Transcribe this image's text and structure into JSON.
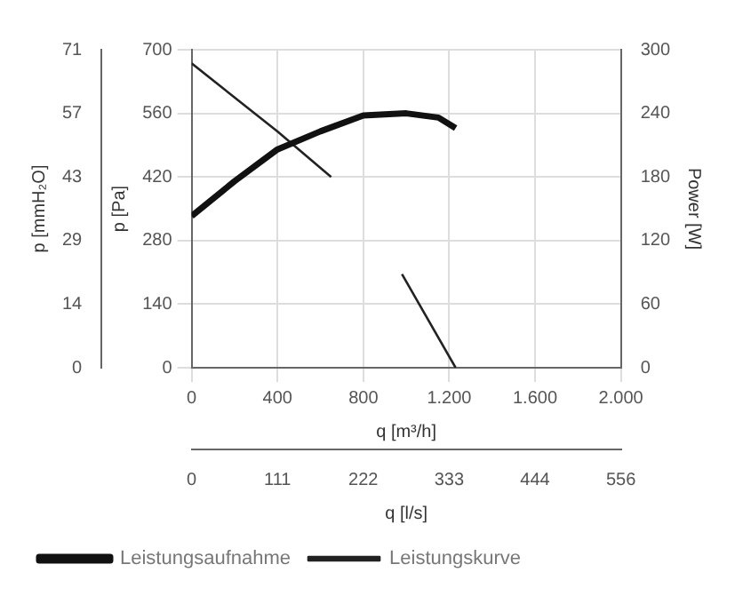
{
  "chart_data": {
    "type": "line",
    "xlabel": "q [m³/h]",
    "ylabel": "p [Pa]",
    "y2label": "Power [W]",
    "y3label": "p [mmH₂O]",
    "x2label": "q [l/s]",
    "xlim": [
      0,
      2000
    ],
    "xticks": [
      0,
      400,
      800,
      {
        "value": 1200,
        "label": "1.200"
      },
      {
        "value": 1600,
        "label": "1.600"
      },
      {
        "value": 2000,
        "label": "2.000"
      }
    ],
    "x2lim": [
      0,
      555.6
    ],
    "x2ticks": [
      0,
      {
        "value": 111.1,
        "label": "111"
      },
      {
        "value": 222.2,
        "label": "222"
      },
      {
        "value": 333.3,
        "label": "333"
      },
      {
        "value": 444.4,
        "label": "444"
      },
      {
        "value": 555.6,
        "label": "556"
      }
    ],
    "ylim": [
      0,
      700
    ],
    "yticks": [
      0,
      140,
      280,
      420,
      560,
      700
    ],
    "y2lim": [
      0,
      300
    ],
    "y2ticks": [
      0,
      60,
      120,
      180,
      240,
      300
    ],
    "y3lim": [
      0,
      71.4
    ],
    "y3ticks": [
      0,
      {
        "value": 14.28,
        "label": "14"
      },
      {
        "value": 28.56,
        "label": "29"
      },
      {
        "value": 42.84,
        "label": "43"
      },
      {
        "value": 57.12,
        "label": "57"
      },
      {
        "value": 71.4,
        "label": "71"
      }
    ],
    "grid": true,
    "legend": "bottom",
    "marker": "none",
    "line_style": "solid",
    "series": [
      {
        "name": "Leistungsaufnahme",
        "color": "#111111",
        "axis": "y2",
        "x": [
          0,
          200,
          400,
          600,
          800,
          1000,
          1150,
          1230
        ],
        "values": [
          143,
          176,
          206,
          223,
          238,
          240,
          236,
          226
        ]
      },
      {
        "name": "Leistungskurve",
        "color": "#222222",
        "x": [
          0,
          400,
          650,
          800,
          980,
          1230
        ],
        "values": [
          670,
          520,
          420,
          null,
          206,
          0
        ]
      }
    ]
  }
}
